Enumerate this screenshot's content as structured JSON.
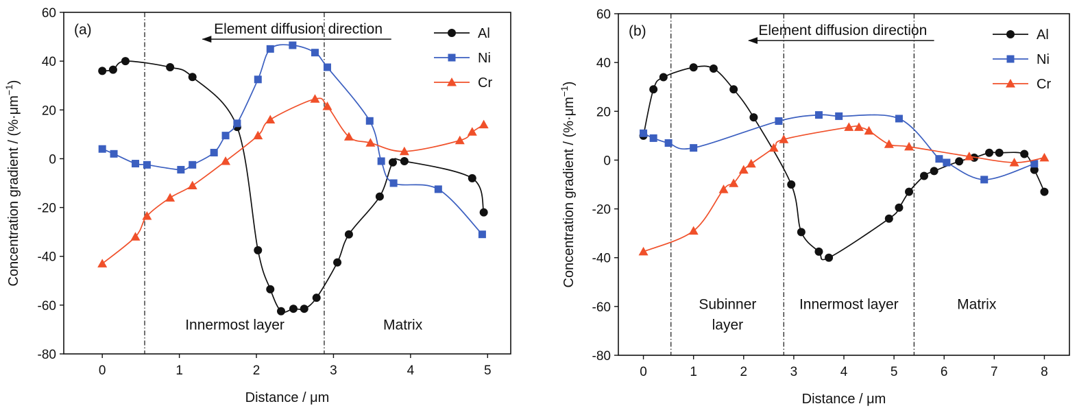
{
  "chart_data": [
    {
      "type": "line",
      "panel_label": "(a)",
      "xlabel": "Distance / μm",
      "ylabel": "Concentration gradient / (%·μm",
      "ylabel_sup": "−1",
      "ylabel_close": ")",
      "xlim": [
        -0.5,
        5.3
      ],
      "ylim": [
        -80,
        60
      ],
      "xticks": [
        0,
        1,
        2,
        3,
        4,
        5
      ],
      "yticks": [
        -80,
        -60,
        -40,
        -20,
        0,
        20,
        40,
        60
      ],
      "ytick_labels": [
        "-80",
        "-60",
        "-40",
        "-20",
        "0",
        "20",
        "40",
        "60"
      ],
      "grid": false,
      "legend_position": "top-right",
      "annotation": {
        "text": "Element diffusion direction",
        "arrow_from_x": 3.75,
        "arrow_to_x": 1.3,
        "y": 49
      },
      "boundaries": [
        0.55,
        2.88
      ],
      "regions": [
        {
          "lines": [
            "Innermost layer"
          ],
          "x": 1.72,
          "y": -70
        },
        {
          "lines": [
            "Matrix"
          ],
          "x": 3.9,
          "y": -70
        }
      ],
      "series": [
        {
          "name": "Al",
          "color": "#111111",
          "marker": "circle",
          "points": [
            [
              0,
              36
            ],
            [
              0.14,
              36.5
            ],
            [
              0.3,
              40
            ],
            [
              0.88,
              37.5
            ],
            [
              1.17,
              33.5
            ],
            [
              1.75,
              13
            ],
            [
              2.02,
              -37.5
            ],
            [
              2.18,
              -53.5
            ],
            [
              2.32,
              -62.5
            ],
            [
              2.48,
              -61.5
            ],
            [
              2.62,
              -61.5
            ],
            [
              2.78,
              -57
            ],
            [
              3.05,
              -42.5
            ],
            [
              3.2,
              -31
            ],
            [
              3.6,
              -15.5
            ],
            [
              3.77,
              -1.5
            ],
            [
              3.92,
              -1
            ],
            [
              4.8,
              -8
            ],
            [
              4.95,
              -22
            ]
          ]
        },
        {
          "name": "Ni",
          "color": "#3b5fc0",
          "marker": "square",
          "points": [
            [
              0,
              4
            ],
            [
              0.15,
              2
            ],
            [
              0.43,
              -2
            ],
            [
              0.58,
              -2.5
            ],
            [
              1.02,
              -4.5
            ],
            [
              1.17,
              -2.5
            ],
            [
              1.45,
              2.5
            ],
            [
              1.6,
              9.5
            ],
            [
              1.75,
              14.5
            ],
            [
              2.02,
              32.5
            ],
            [
              2.18,
              45
            ],
            [
              2.47,
              46.5
            ],
            [
              2.76,
              43.5
            ],
            [
              2.92,
              37.5
            ],
            [
              3.47,
              15.5
            ],
            [
              3.62,
              -1
            ],
            [
              3.78,
              -10
            ],
            [
              4.36,
              -12.5
            ],
            [
              4.93,
              -31
            ]
          ]
        },
        {
          "name": "Cr",
          "color": "#f0502a",
          "marker": "triangle",
          "points": [
            [
              0,
              -43
            ],
            [
              0.43,
              -32
            ],
            [
              0.58,
              -23.5
            ],
            [
              0.88,
              -16
            ],
            [
              1.17,
              -11
            ],
            [
              1.6,
              -1
            ],
            [
              2.02,
              9.5
            ],
            [
              2.18,
              16
            ],
            [
              2.76,
              24.5
            ],
            [
              2.92,
              21.5
            ],
            [
              3.2,
              9
            ],
            [
              3.48,
              6.5
            ],
            [
              3.92,
              3
            ],
            [
              4.64,
              7.5
            ],
            [
              4.8,
              11
            ],
            [
              4.95,
              14
            ]
          ]
        }
      ]
    },
    {
      "type": "line",
      "panel_label": "(b)",
      "xlabel": "Distance / μm",
      "ylabel": "Concentration gradient / (%·μm",
      "ylabel_sup": "−1",
      "ylabel_close": ")",
      "xlim": [
        -0.5,
        8.5
      ],
      "ylim": [
        -80,
        60
      ],
      "xticks": [
        0,
        1,
        2,
        3,
        4,
        5,
        6,
        7,
        8
      ],
      "yticks": [
        -80,
        -60,
        -40,
        -20,
        0,
        20,
        40,
        60
      ],
      "ytick_labels": [
        "-80",
        "-60",
        "-40",
        "-20",
        "0",
        "20",
        "40",
        "60"
      ],
      "grid": false,
      "legend_position": "top-right",
      "annotation": {
        "text": "Element diffusion direction",
        "arrow_from_x": 5.8,
        "arrow_to_x": 2.1,
        "y": 49
      },
      "boundaries": [
        0.55,
        2.8,
        5.4
      ],
      "regions": [
        {
          "lines": [
            "Subinner",
            "layer"
          ],
          "x": 1.68,
          "y": -61
        },
        {
          "lines": [
            "Innermost layer"
          ],
          "x": 4.1,
          "y": -61
        },
        {
          "lines": [
            "Matrix"
          ],
          "x": 6.65,
          "y": -61
        }
      ],
      "series": [
        {
          "name": "Al",
          "color": "#111111",
          "marker": "circle",
          "points": [
            [
              0,
              10
            ],
            [
              0.2,
              29
            ],
            [
              0.4,
              34
            ],
            [
              1,
              38
            ],
            [
              1.4,
              37.5
            ],
            [
              1.8,
              29
            ],
            [
              2.2,
              17.5
            ],
            [
              2.95,
              -10
            ],
            [
              3.15,
              -29.5
            ],
            [
              3.5,
              -37.5
            ],
            [
              3.7,
              -40
            ],
            [
              4.9,
              -24
            ],
            [
              5.1,
              -19.5
            ],
            [
              5.3,
              -13
            ],
            [
              5.6,
              -6.5
            ],
            [
              5.8,
              -4.5
            ],
            [
              6.3,
              -0.5
            ],
            [
              6.6,
              1
            ],
            [
              6.9,
              3
            ],
            [
              7.1,
              3
            ],
            [
              7.6,
              2.5
            ],
            [
              7.8,
              -4
            ],
            [
              8,
              -13
            ]
          ]
        },
        {
          "name": "Ni",
          "color": "#3b5fc0",
          "marker": "square",
          "points": [
            [
              0,
              11
            ],
            [
              0.2,
              9
            ],
            [
              0.5,
              7
            ],
            [
              1,
              5
            ],
            [
              2.7,
              16
            ],
            [
              3.5,
              18.5
            ],
            [
              3.9,
              18
            ],
            [
              5.1,
              17
            ],
            [
              5.9,
              0.5
            ],
            [
              6.05,
              -1
            ],
            [
              6.8,
              -8
            ],
            [
              7.8,
              -1.5
            ]
          ]
        },
        {
          "name": "Cr",
          "color": "#f0502a",
          "marker": "triangle",
          "points": [
            [
              0,
              -37.5
            ],
            [
              1,
              -29
            ],
            [
              1.6,
              -12
            ],
            [
              1.8,
              -9.5
            ],
            [
              2,
              -4
            ],
            [
              2.15,
              -1.5
            ],
            [
              2.6,
              5
            ],
            [
              2.8,
              8.5
            ],
            [
              4.1,
              13.5
            ],
            [
              4.3,
              13.5
            ],
            [
              4.5,
              12
            ],
            [
              4.9,
              6.5
            ],
            [
              5.3,
              5.5
            ],
            [
              6.5,
              1.5
            ],
            [
              7.4,
              -1
            ],
            [
              8,
              1
            ]
          ]
        }
      ]
    }
  ]
}
